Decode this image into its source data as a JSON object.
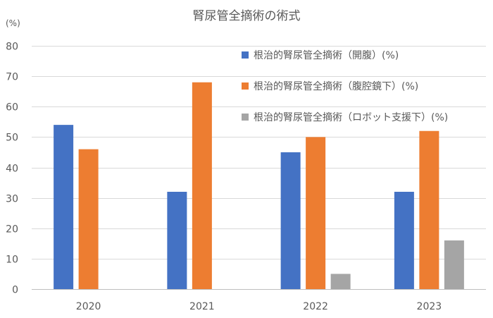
{
  "chart_data": {
    "type": "bar",
    "title": "腎尿管全摘術の術式",
    "ylabel": "(%)",
    "xlabel": "",
    "ylim": [
      0,
      80
    ],
    "yticks": [
      0,
      10,
      20,
      30,
      40,
      50,
      60,
      70,
      80
    ],
    "categories": [
      "2020",
      "2021",
      "2022",
      "2023"
    ],
    "series": [
      {
        "name": "根治的腎尿管全摘術（開腹）(%)",
        "color": "#4472c4",
        "values": [
          54,
          32,
          45,
          32
        ]
      },
      {
        "name": "根治的腎尿管全摘術（腹腔鏡下）(%)",
        "color": "#ed7d31",
        "values": [
          46,
          68,
          50,
          52
        ]
      },
      {
        "name": "根治的腎尿管全摘術（ロボット支援下）(%)",
        "color": "#a5a5a5",
        "values": [
          0,
          0,
          5,
          16
        ]
      }
    ],
    "grid": true,
    "legend_position": "top-right"
  }
}
